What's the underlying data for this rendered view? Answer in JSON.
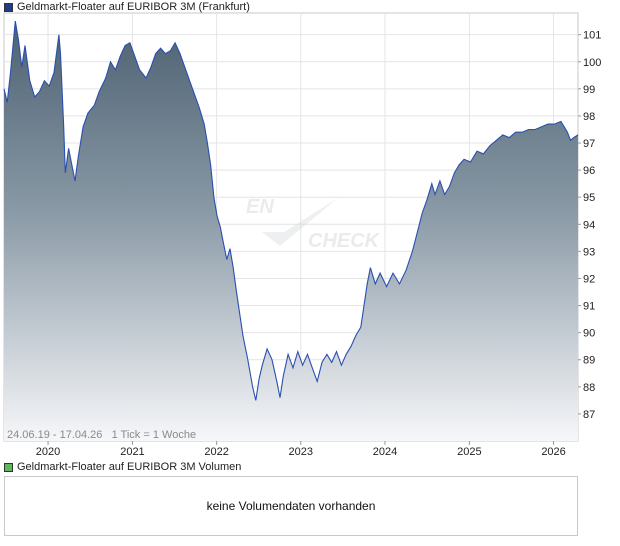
{
  "legends": {
    "price": {
      "label": "Geldmarkt-Floater auf EURIBOR 3M (Frankfurt)",
      "color": "#1f3c88"
    },
    "volume": {
      "label": "Geldmarkt-Floater auf EURIBOR 3M Volumen",
      "color": "#5cb85c"
    }
  },
  "range_label": "24.06.19 - 17.04.26   1 Tick = 1 Woche",
  "watermark": {
    "left": "EN",
    "right": "CHECK"
  },
  "volume_message": "keine Volumendaten vorhanden",
  "chart_data": {
    "type": "area",
    "x_ticks": [
      "2020",
      "2021",
      "2022",
      "2023",
      "2024",
      "2025",
      "2026"
    ],
    "y_ticks": [
      87,
      88,
      89,
      90,
      91,
      92,
      93,
      94,
      95,
      96,
      97,
      98,
      99,
      100,
      101
    ],
    "xlim": [
      "2019-06-24",
      "2026-04-17"
    ],
    "ylim": [
      86,
      101.8
    ],
    "grid": true,
    "series": [
      {
        "points": [
          [
            "2019-06-24",
            99.0
          ],
          [
            "2019-07-08",
            98.5
          ],
          [
            "2019-07-22",
            99.6
          ],
          [
            "2019-08-12",
            101.5
          ],
          [
            "2019-08-26",
            100.8
          ],
          [
            "2019-09-09",
            99.8
          ],
          [
            "2019-09-23",
            100.6
          ],
          [
            "2019-10-14",
            99.3
          ],
          [
            "2019-11-04",
            98.7
          ],
          [
            "2019-11-25",
            98.9
          ],
          [
            "2019-12-16",
            99.3
          ],
          [
            "2020-01-06",
            99.1
          ],
          [
            "2020-01-27",
            99.6
          ],
          [
            "2020-02-17",
            101.0
          ],
          [
            "2020-02-24",
            100.3
          ],
          [
            "2020-03-09",
            97.6
          ],
          [
            "2020-03-16",
            95.9
          ],
          [
            "2020-03-30",
            96.8
          ],
          [
            "2020-04-13",
            96.2
          ],
          [
            "2020-04-27",
            95.6
          ],
          [
            "2020-05-11",
            96.5
          ],
          [
            "2020-06-01",
            97.6
          ],
          [
            "2020-06-22",
            98.1
          ],
          [
            "2020-07-20",
            98.4
          ],
          [
            "2020-08-10",
            98.9
          ],
          [
            "2020-09-07",
            99.4
          ],
          [
            "2020-09-28",
            100.0
          ],
          [
            "2020-10-19",
            99.7
          ],
          [
            "2020-11-09",
            100.2
          ],
          [
            "2020-11-30",
            100.6
          ],
          [
            "2020-12-21",
            100.7
          ],
          [
            "2021-01-11",
            100.2
          ],
          [
            "2021-02-01",
            99.7
          ],
          [
            "2021-03-01",
            99.4
          ],
          [
            "2021-03-22",
            99.8
          ],
          [
            "2021-04-12",
            100.3
          ],
          [
            "2021-05-03",
            100.5
          ],
          [
            "2021-05-24",
            100.3
          ],
          [
            "2021-06-14",
            100.4
          ],
          [
            "2021-07-05",
            100.7
          ],
          [
            "2021-07-26",
            100.3
          ],
          [
            "2021-08-16",
            99.8
          ],
          [
            "2021-09-06",
            99.3
          ],
          [
            "2021-09-27",
            98.8
          ],
          [
            "2021-10-18",
            98.3
          ],
          [
            "2021-11-08",
            97.7
          ],
          [
            "2021-11-22",
            97.0
          ],
          [
            "2021-12-06",
            96.2
          ],
          [
            "2021-12-20",
            95.0
          ],
          [
            "2022-01-03",
            94.3
          ],
          [
            "2022-01-17",
            93.9
          ],
          [
            "2022-01-31",
            93.3
          ],
          [
            "2022-02-14",
            92.7
          ],
          [
            "2022-02-28",
            93.1
          ],
          [
            "2022-03-14",
            92.4
          ],
          [
            "2022-03-28",
            91.5
          ],
          [
            "2022-04-11",
            90.7
          ],
          [
            "2022-04-25",
            89.9
          ],
          [
            "2022-05-16",
            89.0
          ],
          [
            "2022-06-06",
            88.0
          ],
          [
            "2022-06-20",
            87.5
          ],
          [
            "2022-07-04",
            88.3
          ],
          [
            "2022-07-18",
            88.8
          ],
          [
            "2022-08-08",
            89.4
          ],
          [
            "2022-08-29",
            89.0
          ],
          [
            "2022-09-19",
            88.2
          ],
          [
            "2022-10-03",
            87.6
          ],
          [
            "2022-10-17",
            88.4
          ],
          [
            "2022-11-07",
            89.2
          ],
          [
            "2022-11-28",
            88.7
          ],
          [
            "2022-12-19",
            89.3
          ],
          [
            "2023-01-09",
            88.8
          ],
          [
            "2023-01-30",
            89.2
          ],
          [
            "2023-02-20",
            88.7
          ],
          [
            "2023-03-13",
            88.2
          ],
          [
            "2023-04-03",
            88.9
          ],
          [
            "2023-04-24",
            89.2
          ],
          [
            "2023-05-15",
            88.9
          ],
          [
            "2023-06-05",
            89.3
          ],
          [
            "2023-06-26",
            88.8
          ],
          [
            "2023-07-17",
            89.2
          ],
          [
            "2023-08-07",
            89.5
          ],
          [
            "2023-08-28",
            89.9
          ],
          [
            "2023-09-18",
            90.2
          ],
          [
            "2023-10-02",
            91.0
          ],
          [
            "2023-10-16",
            91.8
          ],
          [
            "2023-10-30",
            92.4
          ],
          [
            "2023-11-20",
            91.8
          ],
          [
            "2023-12-11",
            92.2
          ],
          [
            "2024-01-08",
            91.7
          ],
          [
            "2024-02-05",
            92.2
          ],
          [
            "2024-03-04",
            91.8
          ],
          [
            "2024-04-01",
            92.3
          ],
          [
            "2024-04-29",
            93.0
          ],
          [
            "2024-05-20",
            93.7
          ],
          [
            "2024-06-10",
            94.4
          ],
          [
            "2024-07-01",
            94.9
          ],
          [
            "2024-07-22",
            95.5
          ],
          [
            "2024-08-05",
            95.1
          ],
          [
            "2024-08-26",
            95.6
          ],
          [
            "2024-09-16",
            95.1
          ],
          [
            "2024-10-07",
            95.4
          ],
          [
            "2024-10-28",
            95.9
          ],
          [
            "2024-11-18",
            96.2
          ],
          [
            "2024-12-09",
            96.4
          ],
          [
            "2025-01-06",
            96.3
          ],
          [
            "2025-02-03",
            96.7
          ],
          [
            "2025-03-03",
            96.6
          ],
          [
            "2025-03-31",
            96.9
          ],
          [
            "2025-04-28",
            97.1
          ],
          [
            "2025-05-26",
            97.3
          ],
          [
            "2025-06-23",
            97.2
          ],
          [
            "2025-07-21",
            97.4
          ],
          [
            "2025-08-18",
            97.4
          ],
          [
            "2025-09-15",
            97.5
          ],
          [
            "2025-10-13",
            97.5
          ],
          [
            "2025-11-10",
            97.6
          ],
          [
            "2025-12-08",
            97.7
          ],
          [
            "2026-01-05",
            97.7
          ],
          [
            "2026-02-02",
            97.8
          ],
          [
            "2026-02-16",
            97.6
          ],
          [
            "2026-03-02",
            97.4
          ],
          [
            "2026-03-16",
            97.1
          ],
          [
            "2026-03-30",
            97.2
          ],
          [
            "2026-04-17",
            97.3
          ]
        ]
      }
    ]
  }
}
